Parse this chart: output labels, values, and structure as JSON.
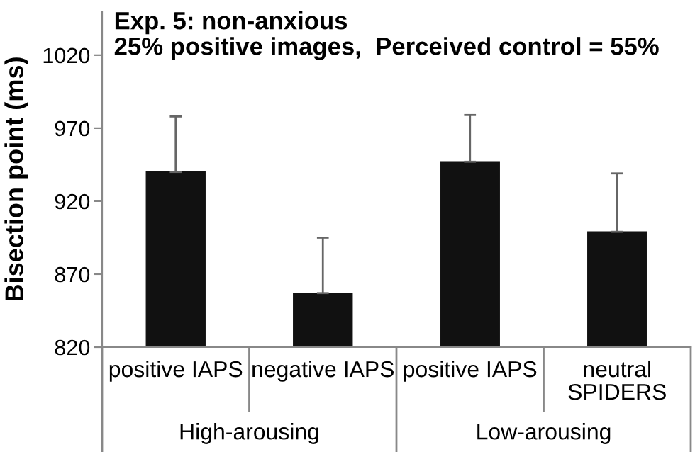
{
  "chart_data": {
    "type": "bar",
    "title": "Exp. 5: non-anxious\n25% positive images,  Perceived control = 55%",
    "ylabel": "Bisection point (ms)",
    "categories": [
      "positive IAPS",
      "negative IAPS",
      "positive IAPS",
      "neutral\nSPIDERS"
    ],
    "values": [
      940,
      857,
      947,
      899
    ],
    "errors": [
      [
        940,
        978
      ],
      [
        857,
        895
      ],
      [
        947,
        979
      ],
      [
        899,
        939
      ]
    ],
    "color": "#111111",
    "annotations": [
      "High-arousing",
      "Low-arousing"
    ],
    "ylim": [
      820,
      1050
    ],
    "yticks": [
      820,
      870,
      920,
      970,
      1020
    ],
    "grid": false,
    "legend": false
  }
}
